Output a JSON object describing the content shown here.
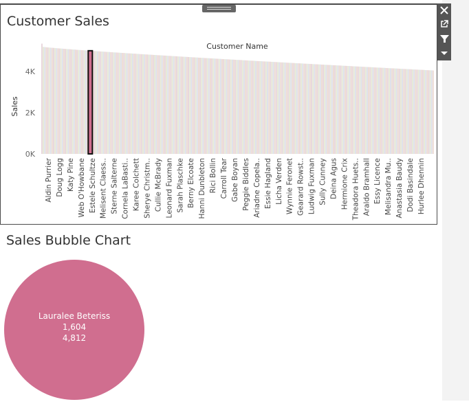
{
  "dashboard": {
    "sheet1": {
      "title": "Customer Sales"
    },
    "sheet2": {
      "title": "Sales Bubble Chart"
    }
  },
  "toolbar": {
    "icons": [
      "close-icon",
      "pop-out-icon",
      "filter-icon",
      "more-options-icon"
    ]
  },
  "colors": {
    "bubble": "#d06e8f",
    "highlight_bar": "#d06e8f",
    "bar_palette": [
      "#e8d6dc",
      "#e5e9d6",
      "#dde0ea",
      "#eddbd3"
    ],
    "toolbar_bg": "#555555"
  },
  "chart_data": [
    {
      "type": "bar",
      "title": "Customer Sales",
      "xlabel": "Customer Name",
      "ylabel": "Sales",
      "ylim": [
        0,
        5000
      ],
      "yticks": [
        "0K",
        "2K",
        "4K"
      ],
      "ytick_values": [
        0,
        2000,
        4000
      ],
      "grid": false,
      "bar_count": 268,
      "value_range": [
        4050,
        5200
      ],
      "highlighted": {
        "category_label": "Melisent Claess..",
        "bar_index": 33
      },
      "visible_category_labels": [
        "Aldin Purrier",
        "Doug Logg",
        "Katy Pine",
        "Web O'Howbane",
        "Estele Schultze",
        "Melisent Claess..",
        "Sterne Salterne",
        "Cornela LaBasti..",
        "Karee Colchett",
        "Sherye Christm..",
        "Cullie McBrady",
        "Leonard Fuxman",
        "Sarah Plaschke",
        "Berny Elcoate",
        "Hanni Dunbleton",
        "Rici Bollin",
        "Carroll Tear",
        "Gabe Boyan",
        "Peggie Biddles",
        "Ariadne Copela..",
        "Essie Hagland",
        "Licha Verden",
        "Wynnie Feronet",
        "Gearard Rowst..",
        "Ludwig Fuxman",
        "Sully Cunney",
        "Deina Agus",
        "Hermione Crix",
        "Theadora Huets..",
        "Araldo Bramhall",
        "Essy Licence",
        "Melisandra Mu..",
        "Anastasia Baudy",
        "Dodi Basindale",
        "Hurlee Dhennin"
      ]
    },
    {
      "type": "scatter",
      "title": "Sales Bubble Chart",
      "points": [
        {
          "label": "Lauralee Beteriss",
          "values": [
            "1,604",
            "4,812"
          ]
        }
      ]
    }
  ]
}
